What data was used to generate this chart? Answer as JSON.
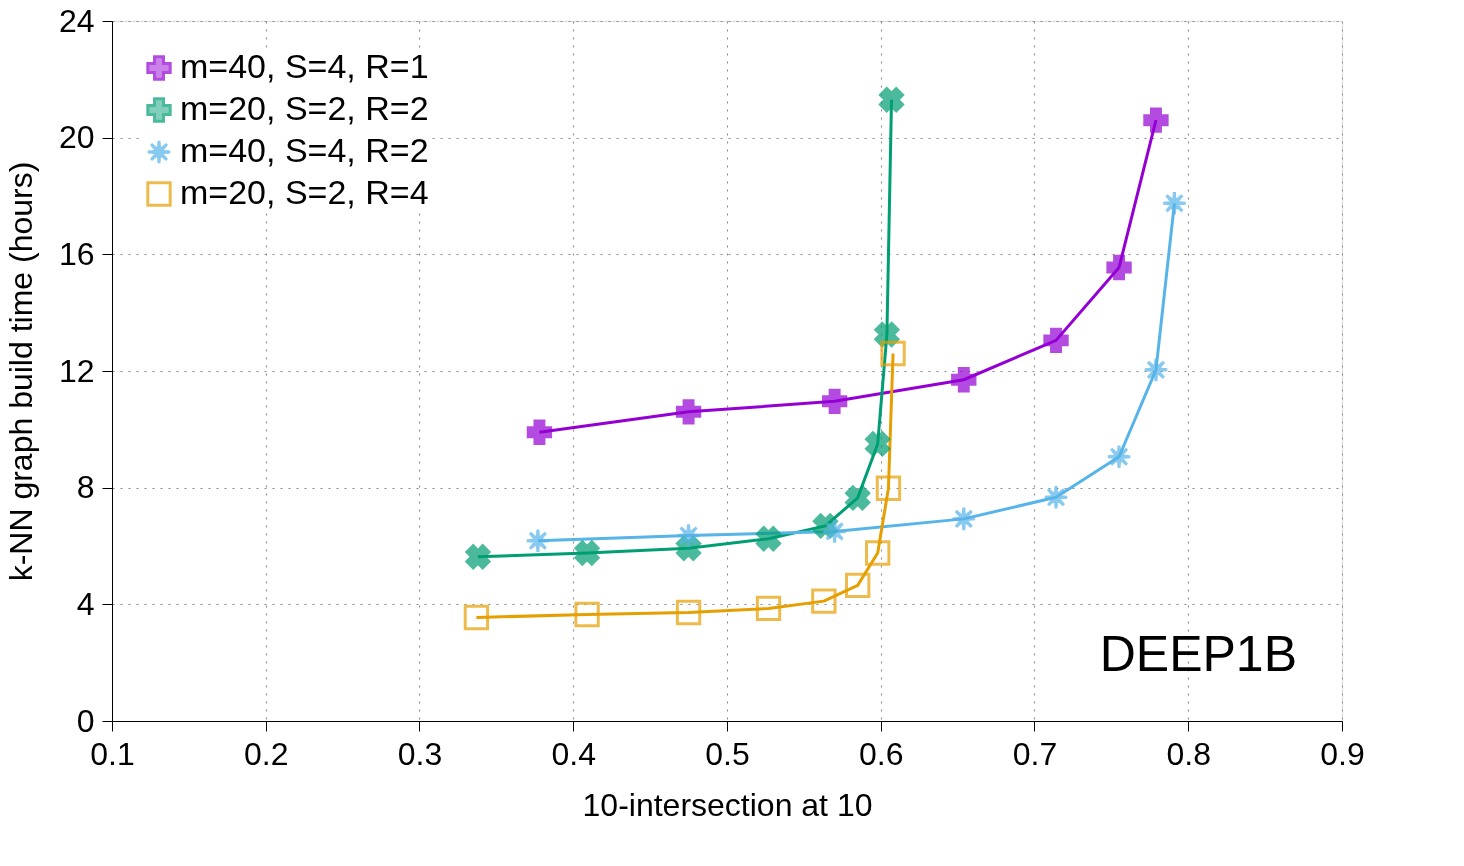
{
  "chart_data": {
    "type": "line",
    "xlabel": "10-intersection at 10",
    "ylabel": "k-NN graph build time (hours)",
    "xlim": [
      0.1,
      0.9
    ],
    "xticks": [
      0.1,
      0.2,
      0.3,
      0.4,
      0.5,
      0.6,
      0.7,
      0.8,
      0.9
    ],
    "ylim": [
      0,
      24
    ],
    "yticks": [
      0,
      4,
      8,
      12,
      16,
      20,
      24
    ],
    "grid": true,
    "legend": "top left",
    "line_style": "solid",
    "annotations": [
      "DEEP1B"
    ],
    "series": [
      {
        "name": "m=40, S=4, R=1",
        "color": "#9400d3",
        "marker": "cross",
        "x": [
          0.378,
          0.475,
          0.57,
          0.654,
          0.714,
          0.755,
          0.779
        ],
        "values": [
          9.9,
          10.6,
          10.96,
          11.7,
          13.05,
          15.55,
          20.6
        ]
      },
      {
        "name": "m=20, S=2, R=2",
        "color": "#009e73",
        "marker": "x",
        "x": [
          0.338,
          0.409,
          0.475,
          0.527,
          0.564,
          0.585,
          0.598,
          0.604,
          0.607
        ],
        "values": [
          5.63,
          5.76,
          5.92,
          6.25,
          6.69,
          7.65,
          9.5,
          13.25,
          21.3
        ]
      },
      {
        "name": "m=40, S=4, R=2",
        "color": "#56b4e9",
        "marker": "star",
        "x": [
          0.377,
          0.475,
          0.57,
          0.654,
          0.714,
          0.755,
          0.779,
          0.791
        ],
        "values": [
          6.18,
          6.36,
          6.5,
          6.93,
          7.67,
          9.06,
          12.04,
          17.75
        ]
      },
      {
        "name": "m=20, S=2, R=4",
        "color": "#e69f00",
        "marker": "square",
        "x": [
          0.337,
          0.409,
          0.475,
          0.527,
          0.563,
          0.585,
          0.598,
          0.605,
          0.608
        ],
        "values": [
          3.55,
          3.65,
          3.72,
          3.86,
          4.11,
          4.65,
          5.76,
          7.98,
          12.6
        ]
      }
    ]
  }
}
